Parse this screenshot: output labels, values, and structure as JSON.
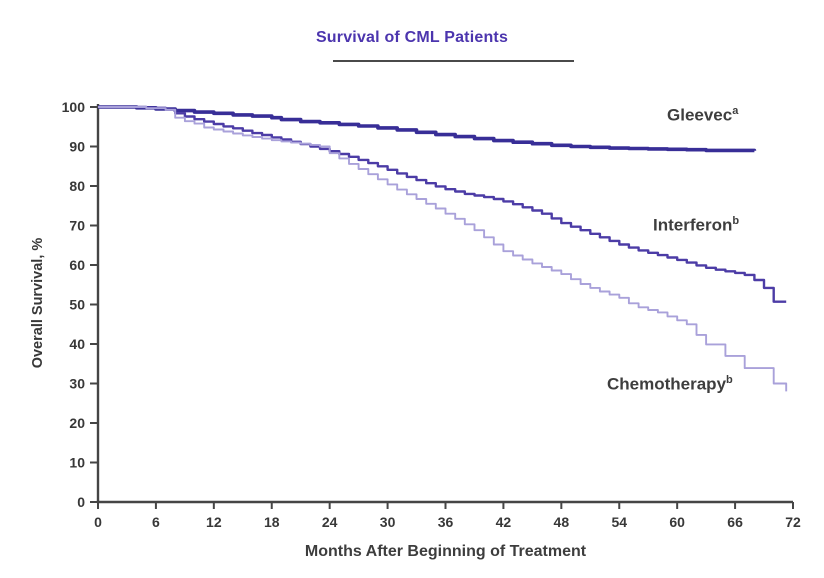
{
  "chart_data": {
    "type": "line",
    "style": "kaplan_meier_step",
    "title": "Survival of CML Patients",
    "xlabel": "Months After Beginning of Treatment",
    "ylabel": "Overall Survival, %",
    "xlim": [
      0,
      72
    ],
    "ylim": [
      0,
      100
    ],
    "x_ticks": [
      0,
      6,
      12,
      18,
      24,
      30,
      36,
      42,
      48,
      54,
      60,
      66,
      72
    ],
    "y_ticks": [
      0,
      10,
      20,
      30,
      40,
      50,
      60,
      70,
      80,
      90,
      100
    ],
    "grid": false,
    "legend_position": "curve-end-labels",
    "axis_color": "#454545",
    "tick_label_color": "#383838",
    "title_color": "#4c35ae",
    "series_label_color": "#3e3e3e",
    "series": [
      {
        "name": "Gleevec",
        "sup": "a",
        "color": "#382e97",
        "width": 3.6,
        "points": [
          [
            0,
            100
          ],
          [
            4,
            99.8
          ],
          [
            6,
            99.5
          ],
          [
            8,
            99.1
          ],
          [
            10,
            98.7
          ],
          [
            12,
            98.4
          ],
          [
            14,
            98
          ],
          [
            16,
            97.7
          ],
          [
            18,
            97.3
          ],
          [
            19,
            96.8
          ],
          [
            21,
            96.3
          ],
          [
            23,
            96
          ],
          [
            25,
            95.6
          ],
          [
            27,
            95.2
          ],
          [
            29,
            94.7
          ],
          [
            31,
            94.2
          ],
          [
            33,
            93.6
          ],
          [
            35,
            93
          ],
          [
            37,
            92.5
          ],
          [
            39,
            92
          ],
          [
            41,
            91.5
          ],
          [
            43,
            91.1
          ],
          [
            45,
            90.7
          ],
          [
            47,
            90.3
          ],
          [
            49,
            90
          ],
          [
            51,
            89.8
          ],
          [
            53,
            89.6
          ],
          [
            55,
            89.5
          ],
          [
            57,
            89.4
          ],
          [
            59,
            89.3
          ],
          [
            61,
            89.2
          ],
          [
            63,
            89
          ],
          [
            68,
            88.9
          ]
        ]
      },
      {
        "name": "Interferon",
        "sup": "b",
        "color": "#4c3ca6",
        "width": 2.4,
        "points": [
          [
            0,
            100
          ],
          [
            5,
            99.8
          ],
          [
            7,
            99.4
          ],
          [
            8,
            98.4
          ],
          [
            9,
            97.6
          ],
          [
            10,
            96.9
          ],
          [
            11,
            96.3
          ],
          [
            12,
            95.7
          ],
          [
            13,
            95.1
          ],
          [
            14,
            94.6
          ],
          [
            15,
            94
          ],
          [
            16,
            93.4
          ],
          [
            17,
            92.9
          ],
          [
            18,
            92.3
          ],
          [
            19,
            91.8
          ],
          [
            20,
            91.2
          ],
          [
            21,
            90.6
          ],
          [
            22,
            90
          ],
          [
            23,
            89.4
          ],
          [
            24,
            88.8
          ],
          [
            25,
            88.1
          ],
          [
            26,
            87.4
          ],
          [
            27,
            86.6
          ],
          [
            28,
            85.8
          ],
          [
            29,
            85
          ],
          [
            30,
            84.1
          ],
          [
            31,
            83.2
          ],
          [
            32,
            82.3
          ],
          [
            33,
            81.5
          ],
          [
            34,
            80.7
          ],
          [
            35,
            79.9
          ],
          [
            36,
            79.2
          ],
          [
            37,
            78.6
          ],
          [
            38,
            78
          ],
          [
            39,
            77.6
          ],
          [
            40,
            77.2
          ],
          [
            41,
            76.7
          ],
          [
            42,
            76.1
          ],
          [
            43,
            75.4
          ],
          [
            44,
            74.6
          ],
          [
            45,
            73.8
          ],
          [
            46,
            73
          ],
          [
            47,
            71.8
          ],
          [
            48,
            70.6
          ],
          [
            49,
            69.7
          ],
          [
            50,
            68.8
          ],
          [
            51,
            67.9
          ],
          [
            52,
            67
          ],
          [
            53,
            66.1
          ],
          [
            54,
            65.2
          ],
          [
            55,
            64.4
          ],
          [
            56,
            63.7
          ],
          [
            57,
            63.1
          ],
          [
            58,
            62.5
          ],
          [
            59,
            61.9
          ],
          [
            60,
            61.3
          ],
          [
            61,
            60.6
          ],
          [
            62,
            59.9
          ],
          [
            63,
            59.3
          ],
          [
            64,
            58.8
          ],
          [
            65,
            58.4
          ],
          [
            66,
            58
          ],
          [
            67,
            57.5
          ],
          [
            68,
            56.2
          ],
          [
            69,
            54.2
          ],
          [
            70,
            50.7
          ],
          [
            71.3,
            50.7
          ]
        ]
      },
      {
        "name": "Chemotherapy",
        "sup": "b",
        "color": "#a9a1da",
        "width": 1.9,
        "points": [
          [
            0,
            100
          ],
          [
            5,
            99.7
          ],
          [
            7,
            99.3
          ],
          [
            8,
            97.3
          ],
          [
            9,
            96.4
          ],
          [
            10,
            95.8
          ],
          [
            11,
            94.8
          ],
          [
            12,
            94.3
          ],
          [
            13,
            93.8
          ],
          [
            14,
            93.3
          ],
          [
            15,
            92.8
          ],
          [
            16,
            92.4
          ],
          [
            17,
            92
          ],
          [
            18,
            91.6
          ],
          [
            19,
            91.3
          ],
          [
            20,
            91
          ],
          [
            21,
            90.7
          ],
          [
            22,
            90.4
          ],
          [
            23,
            90
          ],
          [
            24,
            88.3
          ],
          [
            25,
            87
          ],
          [
            26,
            85.6
          ],
          [
            27,
            84.3
          ],
          [
            28,
            83
          ],
          [
            29,
            81.7
          ],
          [
            30,
            80.4
          ],
          [
            31,
            79.1
          ],
          [
            32,
            77.9
          ],
          [
            33,
            76.7
          ],
          [
            34,
            75.5
          ],
          [
            35,
            74.3
          ],
          [
            36,
            73
          ],
          [
            37,
            71.7
          ],
          [
            38,
            70.3
          ],
          [
            39,
            68.8
          ],
          [
            40,
            67
          ],
          [
            41,
            65.2
          ],
          [
            42,
            63.5
          ],
          [
            43,
            62.4
          ],
          [
            44,
            61.4
          ],
          [
            45,
            60.4
          ],
          [
            46,
            59.5
          ],
          [
            47,
            58.6
          ],
          [
            48,
            57.7
          ],
          [
            49,
            56.4
          ],
          [
            50,
            55.2
          ],
          [
            51,
            54.2
          ],
          [
            52,
            53.3
          ],
          [
            53,
            52.5
          ],
          [
            54,
            51.7
          ],
          [
            55,
            50.3
          ],
          [
            56,
            49.3
          ],
          [
            57,
            48.6
          ],
          [
            58,
            48
          ],
          [
            59,
            47
          ],
          [
            60,
            46
          ],
          [
            61,
            45
          ],
          [
            62,
            42.3
          ],
          [
            63,
            39.9
          ],
          [
            65,
            37
          ],
          [
            67,
            33.9
          ],
          [
            70,
            30
          ],
          [
            71.3,
            28
          ]
        ]
      }
    ]
  }
}
